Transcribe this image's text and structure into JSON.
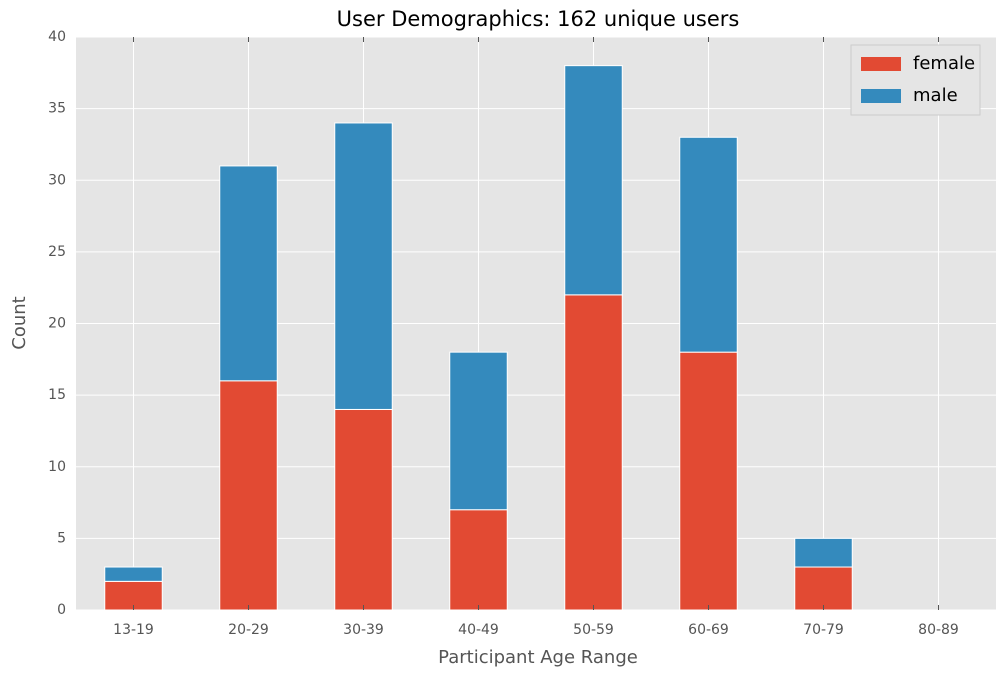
{
  "chart_data": {
    "type": "bar",
    "stacked": true,
    "title": "User Demographics: 162 unique users",
    "xlabel": "Participant Age Range",
    "ylabel": "Count",
    "categories": [
      "13-19",
      "20-29",
      "30-39",
      "40-49",
      "50-59",
      "60-69",
      "70-79",
      "80-89"
    ],
    "series": [
      {
        "name": "female",
        "color": "#e24a33",
        "values": [
          2,
          16,
          14,
          7,
          22,
          18,
          3,
          0
        ]
      },
      {
        "name": "male",
        "color": "#348abd",
        "values": [
          1,
          15,
          20,
          11,
          16,
          15,
          2,
          0
        ]
      }
    ],
    "ylim": [
      0,
      40
    ],
    "yticks": [
      0,
      5,
      10,
      15,
      20,
      25,
      30,
      35,
      40
    ],
    "grid": true,
    "legend": "upper right"
  }
}
